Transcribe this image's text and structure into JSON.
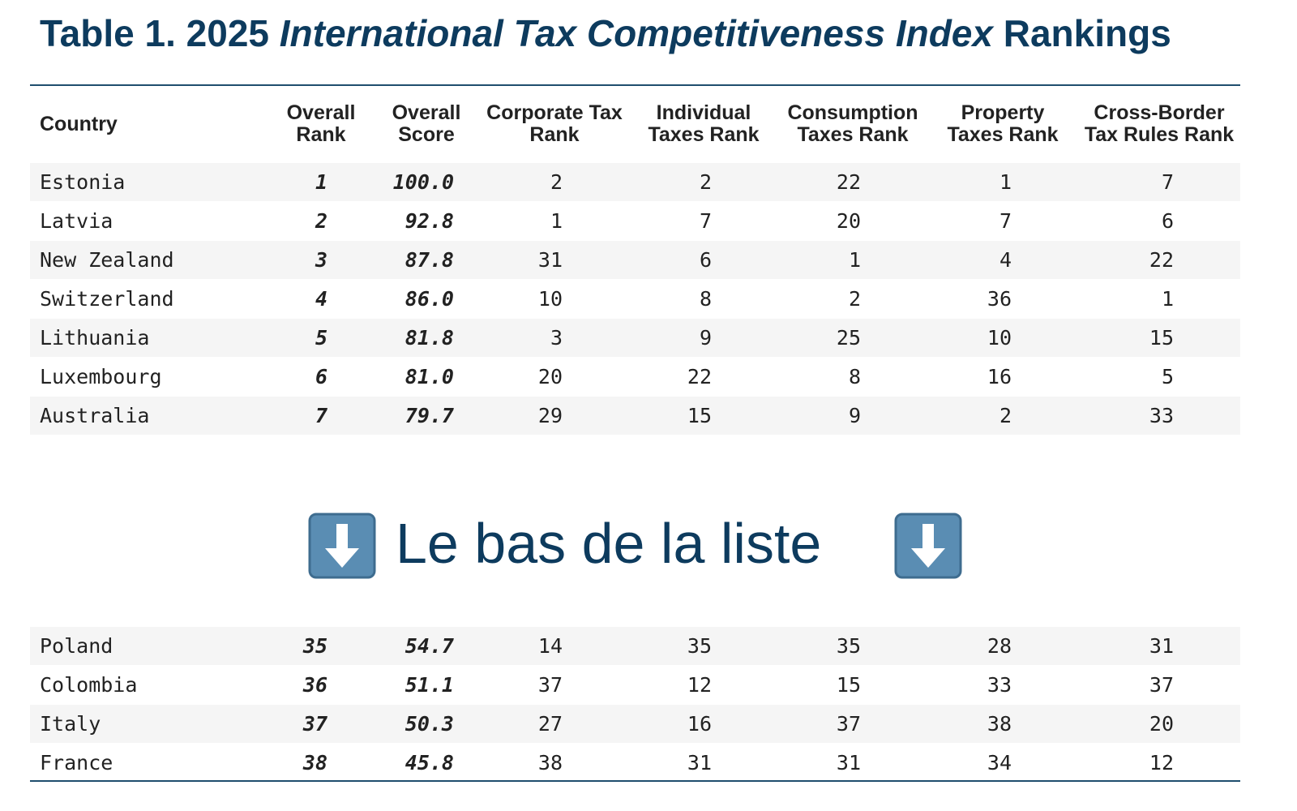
{
  "title": {
    "prefix": "Table 1. 2025",
    "italic": "International Tax Competitiveness Index",
    "suffix": "Rankings"
  },
  "table": {
    "headers": [
      [
        "Country"
      ],
      [
        "Overall",
        "Rank"
      ],
      [
        "Overall",
        "Score"
      ],
      [
        "Corporate Tax",
        "Rank"
      ],
      [
        "Individual",
        "Taxes Rank"
      ],
      [
        "Consumption",
        "Taxes Rank"
      ],
      [
        "Property",
        "Taxes Rank"
      ],
      [
        "Cross-Border",
        "Tax Rules Rank"
      ]
    ],
    "top_rows": [
      [
        "Estonia",
        "1",
        "100.0",
        "2",
        "2",
        "22",
        "1",
        "7"
      ],
      [
        "Latvia",
        "2",
        "92.8",
        "1",
        "7",
        "20",
        "7",
        "6"
      ],
      [
        "New Zealand",
        "3",
        "87.8",
        "31",
        "6",
        "1",
        "4",
        "22"
      ],
      [
        "Switzerland",
        "4",
        "86.0",
        "10",
        "8",
        "2",
        "36",
        "1"
      ],
      [
        "Lithuania",
        "5",
        "81.8",
        "3",
        "9",
        "25",
        "10",
        "15"
      ],
      [
        "Luxembourg",
        "6",
        "81.0",
        "20",
        "22",
        "8",
        "16",
        "5"
      ],
      [
        "Australia",
        "7",
        "79.7",
        "29",
        "15",
        "9",
        "2",
        "33"
      ]
    ],
    "divider": "Le bas de la liste",
    "bottom_rows": [
      [
        "Poland",
        "35",
        "54.7",
        "14",
        "35",
        "35",
        "28",
        "31"
      ],
      [
        "Colombia",
        "36",
        "51.1",
        "37",
        "12",
        "15",
        "33",
        "37"
      ],
      [
        "Italy",
        "37",
        "50.3",
        "27",
        "16",
        "37",
        "38",
        "20"
      ],
      [
        "France",
        "38",
        "45.8",
        "38",
        "31",
        "31",
        "34",
        "12"
      ]
    ]
  }
}
